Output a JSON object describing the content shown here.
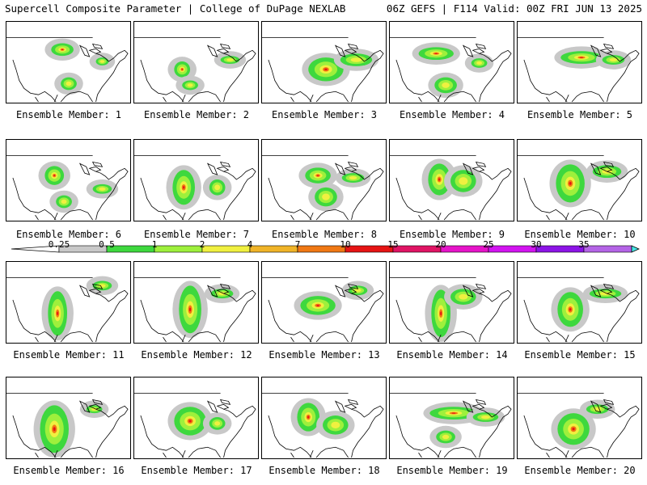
{
  "header": {
    "title_left": "Supercell Composite Parameter | College of DuPage NEXLAB",
    "title_right": "06Z GEFS | F114 Valid: 00Z FRI JUN 13 2025"
  },
  "colorbar": {
    "labels": [
      "0.25",
      "0.5",
      "1",
      "2",
      "4",
      "7",
      "10",
      "15",
      "20",
      "25",
      "30",
      "35"
    ],
    "colors": [
      "#c8c8c8",
      "#3ed83e",
      "#9ef03c",
      "#f0f040",
      "#f0b428",
      "#f07814",
      "#e61414",
      "#e01464",
      "#e614c8",
      "#d214f0",
      "#8c14e6",
      "#b464e6",
      "#46e6e6"
    ]
  },
  "ensemble": {
    "caption_prefix": "Ensemble Member:",
    "members": [
      {
        "number": "1"
      },
      {
        "number": "2"
      },
      {
        "number": "3"
      },
      {
        "number": "4"
      },
      {
        "number": "5"
      },
      {
        "number": "6"
      },
      {
        "number": "7"
      },
      {
        "number": "8"
      },
      {
        "number": "9"
      },
      {
        "number": "10"
      },
      {
        "number": "11"
      },
      {
        "number": "12"
      },
      {
        "number": "13"
      },
      {
        "number": "14"
      },
      {
        "number": "15"
      },
      {
        "number": "16"
      },
      {
        "number": "17"
      },
      {
        "number": "18"
      },
      {
        "number": "19"
      },
      {
        "number": "20"
      }
    ]
  }
}
